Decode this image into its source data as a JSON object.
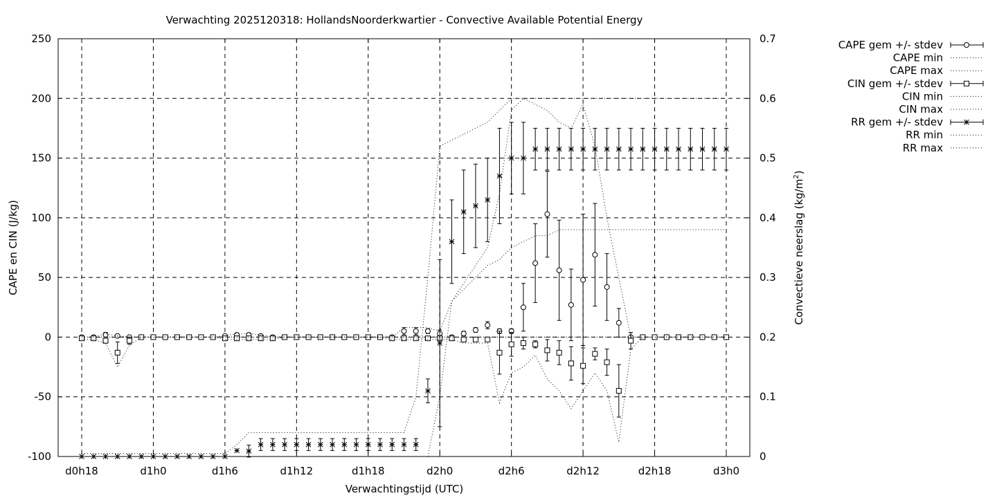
{
  "chart_data": {
    "type": "line",
    "title": "Verwachting 2025120318: HollandsNoorderkwartier - Convective Available Potential Energy",
    "xlabel": "Verwachtingstijd (UTC)",
    "ylabel": "CAPE en CIN (J/kg)",
    "y2label": "Convectieve neerslag (kg/m",
    "y2label_sup": "2",
    "y2label_close": ")",
    "x_unit": "forecast hour",
    "xlim": [
      0,
      54
    ],
    "ylim": [
      -100,
      250
    ],
    "y2lim": [
      0,
      0.7
    ],
    "grid": true,
    "legend_position": "outside-right",
    "x_ticks": [
      {
        "x": 0,
        "label": "d0h18"
      },
      {
        "x": 6,
        "label": "d1h0"
      },
      {
        "x": 12,
        "label": "d1h6"
      },
      {
        "x": 18,
        "label": "d1h12"
      },
      {
        "x": 24,
        "label": "d1h18"
      },
      {
        "x": 30,
        "label": "d2h0"
      },
      {
        "x": 36,
        "label": "d2h6"
      },
      {
        "x": 42,
        "label": "d2h12"
      },
      {
        "x": 48,
        "label": "d2h18"
      },
      {
        "x": 54,
        "label": "d3h0"
      }
    ],
    "y_ticks": [
      "250",
      "200",
      "150",
      "100",
      "50",
      "0",
      "-50",
      "-100"
    ],
    "y2_ticks": [
      "0.7",
      "0.6",
      "0.5",
      "0.4",
      "0.3",
      "0.2",
      "0.1",
      "0"
    ],
    "x": [
      0,
      1,
      2,
      3,
      4,
      5,
      6,
      7,
      8,
      9,
      10,
      11,
      12,
      13,
      14,
      15,
      16,
      17,
      18,
      19,
      20,
      21,
      22,
      23,
      24,
      25,
      26,
      27,
      28,
      29,
      30,
      31,
      32,
      33,
      34,
      35,
      36,
      37,
      38,
      39,
      40,
      41,
      42,
      43,
      44,
      45,
      46,
      47,
      48,
      49,
      50,
      51,
      52,
      53,
      54
    ],
    "series": [
      {
        "name": "CAPE gem +/- stdev",
        "axis": "y",
        "marker": "circle",
        "values": [
          0,
          0,
          2,
          1,
          0,
          0,
          0,
          0,
          0,
          0,
          0,
          0,
          1,
          2,
          2,
          1,
          0,
          0,
          0,
          0,
          0,
          0,
          0,
          0,
          0,
          0,
          0,
          5,
          5,
          5,
          3,
          0,
          3,
          6,
          10,
          5,
          5,
          25,
          62,
          103,
          56,
          27,
          48,
          69,
          42,
          12,
          0,
          0,
          0,
          0,
          0,
          0,
          0,
          0,
          0
        ],
        "stdev": [
          0,
          0,
          2,
          0,
          0,
          0,
          0,
          0,
          0,
          0,
          0,
          0,
          1,
          1,
          1,
          1,
          0,
          0,
          0,
          0,
          0,
          0,
          0,
          0,
          0,
          0,
          0,
          3,
          3,
          2,
          3,
          0,
          2,
          2,
          3,
          2,
          2,
          20,
          33,
          36,
          42,
          30,
          55,
          43,
          28,
          12,
          0,
          0,
          0,
          0,
          0,
          0,
          0,
          0,
          0
        ]
      },
      {
        "name": "CAPE min",
        "axis": "y",
        "style": "dotted",
        "values": [
          0,
          0,
          0,
          0,
          0,
          0,
          0,
          0,
          0,
          0,
          0,
          0,
          0,
          0,
          0,
          0,
          0,
          0,
          0,
          0,
          0,
          0,
          0,
          0,
          0,
          0,
          0,
          0,
          0,
          0,
          0,
          0,
          0,
          0,
          0,
          0,
          0,
          0,
          0,
          0,
          0,
          0,
          0,
          0,
          0,
          0,
          0,
          0,
          0,
          0,
          0,
          0,
          0,
          0,
          0
        ]
      },
      {
        "name": "CAPE max",
        "axis": "y",
        "style": "dotted",
        "values": [
          0,
          0,
          3,
          1,
          0,
          0,
          0,
          0,
          0,
          0,
          0,
          0,
          1,
          3,
          3,
          2,
          0,
          0,
          0,
          0,
          0,
          0,
          0,
          0,
          0,
          0,
          0,
          8,
          8,
          8,
          5,
          30,
          45,
          60,
          75,
          120,
          190,
          200,
          195,
          190,
          180,
          175,
          195,
          160,
          100,
          50,
          0,
          0,
          0,
          0,
          0,
          0,
          0,
          0,
          0
        ]
      },
      {
        "name": "CIN gem +/- stdev",
        "axis": "y",
        "marker": "square",
        "values": [
          -1,
          -1,
          -3,
          -13,
          -3,
          0,
          0,
          0,
          0,
          0,
          0,
          0,
          -1,
          -1,
          -1,
          -1,
          -1,
          0,
          0,
          0,
          0,
          0,
          0,
          0,
          0,
          0,
          -1,
          -1,
          -1,
          -1,
          -1,
          -1,
          -2,
          -2,
          -2,
          -13,
          -6,
          -5,
          -6,
          -11,
          -13,
          -22,
          -24,
          -14,
          -21,
          -45,
          -3,
          0,
          0,
          0,
          0,
          0,
          0,
          0,
          0
        ],
        "stdev": [
          0,
          0,
          2,
          9,
          3,
          0,
          0,
          0,
          0,
          0,
          0,
          0,
          1,
          1,
          1,
          1,
          1,
          0,
          0,
          0,
          0,
          0,
          0,
          0,
          0,
          0,
          1,
          1,
          1,
          1,
          1,
          1,
          1,
          1,
          1,
          18,
          10,
          5,
          3,
          9,
          10,
          14,
          15,
          5,
          11,
          22,
          7,
          0,
          0,
          0,
          0,
          0,
          0,
          0,
          0
        ]
      },
      {
        "name": "CIN min",
        "axis": "y",
        "style": "dotted",
        "values": [
          -2,
          -2,
          -5,
          -25,
          -7,
          0,
          0,
          0,
          0,
          0,
          0,
          0,
          -2,
          -2,
          -2,
          -2,
          -2,
          0,
          0,
          0,
          0,
          0,
          0,
          0,
          0,
          0,
          -2,
          -2,
          -2,
          -2,
          -2,
          -2,
          -5,
          -5,
          -5,
          -55,
          -30,
          -25,
          -15,
          -35,
          -45,
          -60,
          -45,
          -30,
          -45,
          -88,
          -10,
          0,
          0,
          0,
          0,
          0,
          0,
          0,
          0
        ]
      },
      {
        "name": "CIN max",
        "axis": "y",
        "style": "dotted",
        "values": [
          0,
          0,
          0,
          0,
          0,
          0,
          0,
          0,
          0,
          0,
          0,
          0,
          0,
          0,
          0,
          0,
          0,
          0,
          0,
          0,
          0,
          0,
          0,
          0,
          0,
          0,
          0,
          0,
          0,
          0,
          0,
          0,
          0,
          0,
          0,
          0,
          0,
          0,
          0,
          0,
          0,
          0,
          0,
          0,
          0,
          0,
          0,
          0,
          0,
          0,
          0,
          0,
          0,
          0,
          0
        ]
      },
      {
        "name": "RR gem +/- stdev",
        "axis": "y2",
        "marker": "star",
        "values": [
          0,
          0,
          0,
          0,
          0,
          0,
          0,
          0,
          0,
          0,
          0,
          0,
          0,
          0.01,
          0.009,
          0.02,
          0.02,
          0.02,
          0.02,
          0.02,
          0.02,
          0.02,
          0.02,
          0.02,
          0.02,
          0.02,
          0.02,
          0.02,
          0.02,
          0.11,
          0.19,
          0.36,
          0.41,
          0.42,
          0.43,
          0.47,
          0.5,
          0.5,
          0.515,
          0.515,
          0.515,
          0.515,
          0.515,
          0.515,
          0.515,
          0.515,
          0.515,
          0.515,
          0.515,
          0.515,
          0.515,
          0.515,
          0.515,
          0.515,
          0.515
        ],
        "stdev": [
          0,
          0,
          0,
          0,
          0,
          0,
          0,
          0,
          0,
          0,
          0,
          0,
          0,
          0,
          0.01,
          0.01,
          0.01,
          0.01,
          0.01,
          0.01,
          0.01,
          0.01,
          0.01,
          0.01,
          0.01,
          0.01,
          0.01,
          0.01,
          0.01,
          0.02,
          0.14,
          0.07,
          0.07,
          0.07,
          0.07,
          0.08,
          0.06,
          0.06,
          0.035,
          0.035,
          0.035,
          0.035,
          0.035,
          0.035,
          0.035,
          0.035,
          0.035,
          0.035,
          0.035,
          0.035,
          0.035,
          0.035,
          0.035,
          0.035,
          0.035
        ]
      },
      {
        "name": "RR min",
        "axis": "y2",
        "style": "dotted",
        "values": [
          0,
          0,
          0,
          0,
          0,
          0,
          0,
          0,
          0,
          0,
          0,
          0,
          0,
          0,
          0,
          0,
          0,
          0,
          0,
          0,
          0,
          0,
          0,
          0,
          0,
          0,
          0,
          0,
          0,
          0,
          0.1,
          0.26,
          0.28,
          0.3,
          0.32,
          0.33,
          0.35,
          0.36,
          0.37,
          0.37,
          0.38,
          0.38,
          0.38,
          0.38,
          0.38,
          0.38,
          0.38,
          0.38,
          0.38,
          0.38,
          0.38,
          0.38,
          0.38,
          0.38,
          0.38
        ]
      },
      {
        "name": "RR max",
        "axis": "y2",
        "style": "dotted",
        "values": [
          0.005,
          0.005,
          0.005,
          0.005,
          0.005,
          0.005,
          0.005,
          0.005,
          0.005,
          0.005,
          0.005,
          0.005,
          0.005,
          0.02,
          0.04,
          0.04,
          0.04,
          0.04,
          0.04,
          0.04,
          0.04,
          0.04,
          0.04,
          0.04,
          0.04,
          0.04,
          0.04,
          0.04,
          0.1,
          0.3,
          0.52,
          0.53,
          0.54,
          0.55,
          0.56,
          0.58,
          0.6,
          0.6,
          0.6,
          0.6,
          0.6,
          0.6,
          0.6,
          0.6,
          0.6,
          0.6,
          0.6,
          0.6,
          0.6,
          0.6,
          0.6,
          0.6,
          0.6,
          0.6,
          0.6
        ]
      }
    ]
  }
}
